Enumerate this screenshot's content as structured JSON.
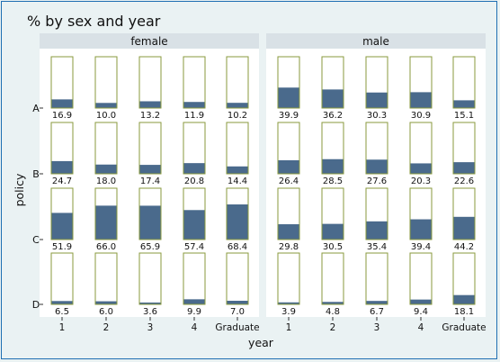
{
  "chart_data": {
    "type": "bar",
    "title": "% by sex and year",
    "xlabel": "year",
    "ylabel": "policy",
    "panels": [
      "female",
      "male"
    ],
    "rows": [
      "A",
      "B",
      "C",
      "D"
    ],
    "categories": [
      "1",
      "2",
      "3",
      "4",
      "Graduate"
    ],
    "ylim": [
      0,
      100
    ],
    "bar_color": "#4a6a8c",
    "cell_border_color": "#8a9a3e",
    "strip_color": "#d9e1e6",
    "panel_bg": "#ffffff",
    "values": {
      "female": {
        "A": [
          16.9,
          10.0,
          13.2,
          11.9,
          10.2
        ],
        "B": [
          24.7,
          18.0,
          17.4,
          20.8,
          14.4
        ],
        "C": [
          51.9,
          66.0,
          65.9,
          57.4,
          68.4
        ],
        "D": [
          6.5,
          6.0,
          3.6,
          9.9,
          7.0
        ]
      },
      "male": {
        "A": [
          39.9,
          36.2,
          30.3,
          30.9,
          15.1
        ],
        "B": [
          26.4,
          28.5,
          27.6,
          20.3,
          22.6
        ],
        "C": [
          29.8,
          30.5,
          35.4,
          39.4,
          44.2
        ],
        "D": [
          3.9,
          4.8,
          6.7,
          9.4,
          18.1
        ]
      }
    }
  }
}
